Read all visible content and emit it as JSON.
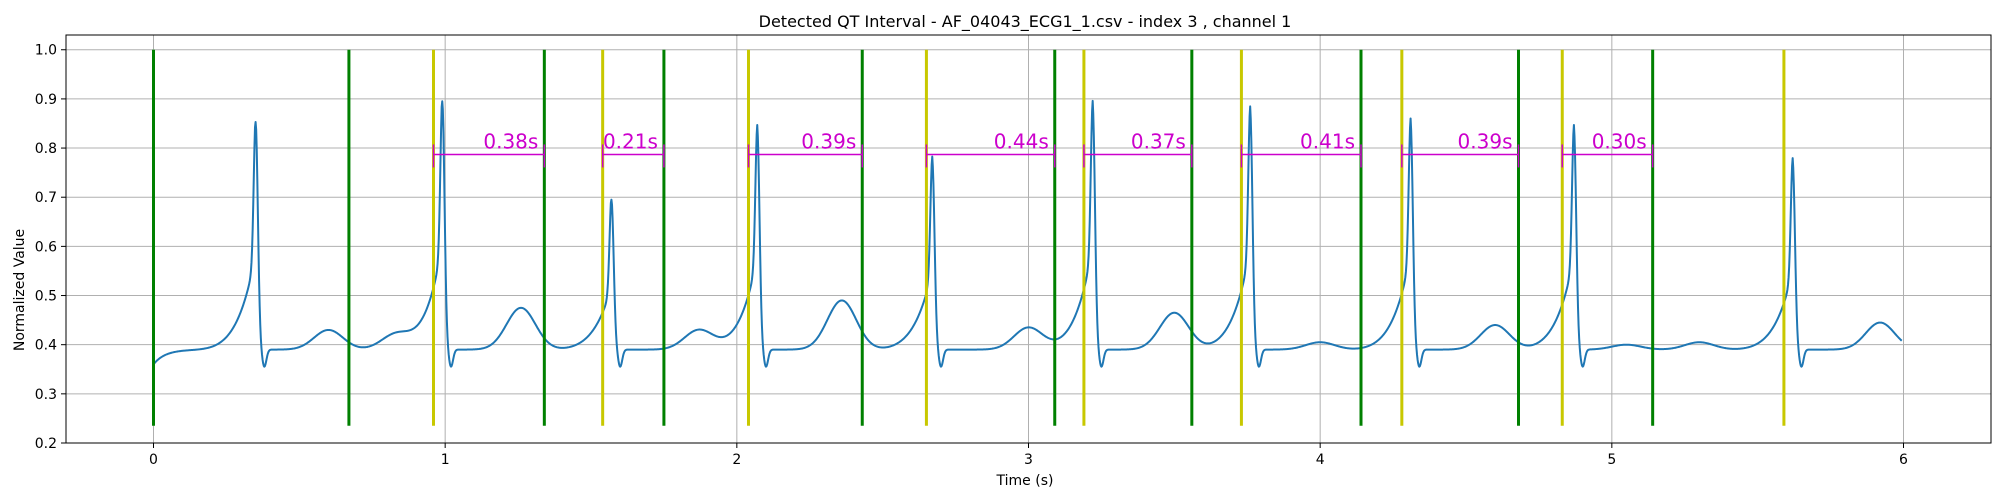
{
  "chart_data": {
    "type": "line",
    "title": "Detected QT Interval - AF_04043_ECG1_1.csv - index 3 , channel 1",
    "xlabel": "Time (s)",
    "ylabel": "Normalized Value",
    "xlim": [
      -0.3,
      6.3
    ],
    "ylim": [
      0.2,
      1.03
    ],
    "xticks": [
      0,
      1,
      2,
      3,
      4,
      5,
      6
    ],
    "xtick_labels": [
      "0",
      "1",
      "2",
      "3",
      "4",
      "5",
      "6"
    ],
    "yticks": [
      0.2,
      0.3,
      0.4,
      0.5,
      0.6,
      0.7,
      0.8,
      0.9,
      1.0
    ],
    "ytick_labels": [
      "0.2",
      "0.3",
      "0.4",
      "0.5",
      "0.6",
      "0.7",
      "0.8",
      "0.9",
      "1.0"
    ],
    "grid": true,
    "colors": {
      "signal": "#1f77b4",
      "q_marker": "#c8c800",
      "t_marker": "#008000",
      "interval": "#cc00cc"
    },
    "marker_range": [
      0.235,
      1.0
    ],
    "interval_y": 0.787,
    "signal": {
      "baseline": 0.39,
      "start_value": 0.36,
      "r_peaks": [
        {
          "t": 0.35,
          "peak": 0.853
        },
        {
          "t": 0.99,
          "peak": 0.895
        },
        {
          "t": 1.57,
          "peak": 0.695
        },
        {
          "t": 2.07,
          "peak": 0.838
        },
        {
          "t": 2.67,
          "peak": 0.775
        },
        {
          "t": 3.22,
          "peak": 0.886
        },
        {
          "t": 3.76,
          "peak": 0.875
        },
        {
          "t": 4.31,
          "peak": 0.851
        },
        {
          "t": 4.87,
          "peak": 0.838
        },
        {
          "t": 5.62,
          "peak": 0.772
        }
      ],
      "t_waves": [
        {
          "t": 0.6,
          "amp": 0.04
        },
        {
          "t": 0.83,
          "amp": 0.03
        },
        {
          "t": 1.26,
          "amp": 0.085
        },
        {
          "t": 1.87,
          "amp": 0.04
        },
        {
          "t": 2.36,
          "amp": 0.1
        },
        {
          "t": 3.0,
          "amp": 0.045
        },
        {
          "t": 3.5,
          "amp": 0.075
        },
        {
          "t": 4.0,
          "amp": 0.015
        },
        {
          "t": 4.6,
          "amp": 0.05
        },
        {
          "t": 5.05,
          "amp": 0.01
        },
        {
          "t": 5.3,
          "amp": 0.015
        },
        {
          "t": 5.92,
          "amp": 0.055
        }
      ]
    },
    "q_markers": [
      0.96,
      1.54,
      2.04,
      2.65,
      3.19,
      3.73,
      4.28,
      4.83,
      5.59
    ],
    "t_markers": [
      0.0,
      0.67,
      1.34,
      1.75,
      2.43,
      3.09,
      3.56,
      4.14,
      4.68,
      5.14
    ],
    "intervals": [
      {
        "start": 0.96,
        "end": 1.34,
        "label": "0.38s"
      },
      {
        "start": 1.54,
        "end": 1.75,
        "label": "0.21s"
      },
      {
        "start": 2.04,
        "end": 2.43,
        "label": "0.39s"
      },
      {
        "start": 2.65,
        "end": 3.09,
        "label": "0.44s"
      },
      {
        "start": 3.19,
        "end": 3.56,
        "label": "0.37s"
      },
      {
        "start": 3.73,
        "end": 4.14,
        "label": "0.41s"
      },
      {
        "start": 4.28,
        "end": 4.68,
        "label": "0.39s"
      },
      {
        "start": 4.83,
        "end": 5.14,
        "label": "0.30s"
      }
    ]
  }
}
